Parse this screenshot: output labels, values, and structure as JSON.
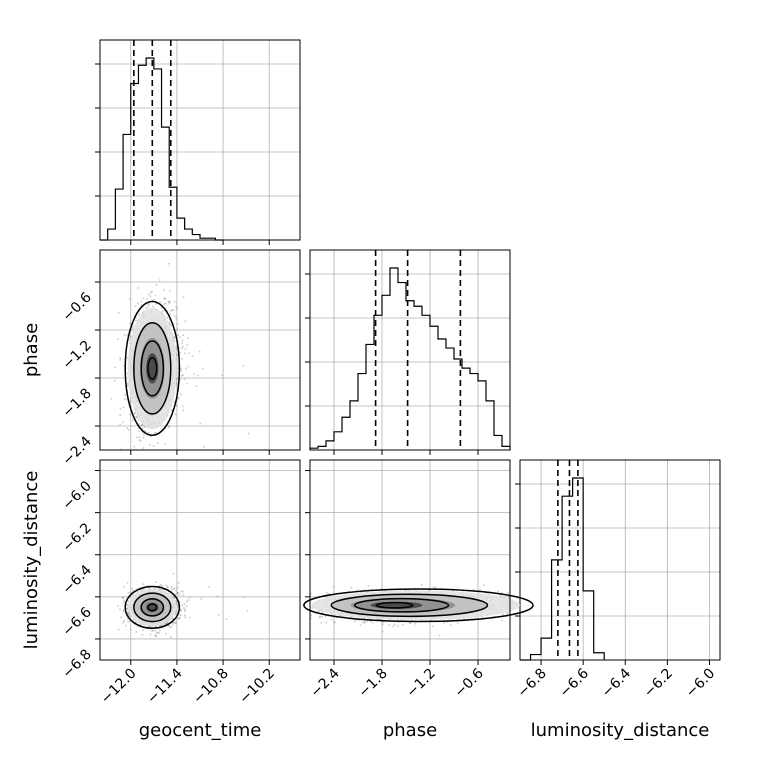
{
  "chart_data": {
    "type": "corner",
    "parameters": [
      "geocent_time",
      "phase",
      "luminosity_distance"
    ],
    "axis_labels": {
      "geocent_time": "geocent_time",
      "phase": "phase",
      "luminosity_distance": "luminosity_distance"
    },
    "ranges": {
      "geocent_time": [
        -12.4,
        -9.8
      ],
      "phase": [
        -2.7,
        -0.2
      ],
      "luminosity_distance": [
        -6.9,
        -5.95
      ]
    },
    "ticks": {
      "geocent_time": [
        -12.0,
        -11.4,
        -10.8,
        -10.2
      ],
      "phase": [
        -2.4,
        -1.8,
        -1.2,
        -0.6
      ],
      "luminosity_distance": [
        -6.8,
        -6.6,
        -6.4,
        -6.2,
        -6.0
      ]
    },
    "tick_labels": {
      "geocent_time": [
        "−12.0",
        "−11.4",
        "−10.8",
        "−10.2"
      ],
      "phase": [
        "−2.4",
        "−1.8",
        "−1.2",
        "−0.6"
      ],
      "luminosity_distance": [
        "−6.8",
        "−6.6",
        "−6.4",
        "−6.2",
        "−6.0"
      ]
    },
    "quantiles": {
      "geocent_time": [
        -11.96,
        -11.72,
        -11.48
      ],
      "phase": [
        -1.88,
        -1.48,
        -0.82
      ],
      "luminosity_distance": [
        -6.72,
        -6.665,
        -6.625
      ]
    },
    "histograms": {
      "geocent_time": {
        "bin_edges": [
          -12.4,
          -12.3,
          -12.2,
          -12.1,
          -12.0,
          -11.9,
          -11.8,
          -11.7,
          -11.6,
          -11.5,
          -11.4,
          -11.3,
          -11.2,
          -11.1,
          -11.0,
          -10.9,
          -10.8
        ],
        "counts": [
          0.0,
          0.06,
          0.28,
          0.58,
          0.86,
          0.96,
          1.0,
          0.94,
          0.62,
          0.29,
          0.12,
          0.06,
          0.03,
          0.01,
          0.01,
          0.0
        ]
      },
      "phase": {
        "bin_edges": [
          -2.7,
          -2.6,
          -2.5,
          -2.4,
          -2.3,
          -2.2,
          -2.1,
          -2.0,
          -1.9,
          -1.8,
          -1.7,
          -1.6,
          -1.5,
          -1.4,
          -1.3,
          -1.2,
          -1.1,
          -1.0,
          -0.9,
          -0.8,
          -0.7,
          -0.6,
          -0.5,
          -0.4,
          -0.3,
          -0.2
        ],
        "counts": [
          0.01,
          0.02,
          0.05,
          0.1,
          0.18,
          0.27,
          0.42,
          0.58,
          0.74,
          0.85,
          1.0,
          0.92,
          0.82,
          0.79,
          0.74,
          0.68,
          0.61,
          0.56,
          0.5,
          0.45,
          0.42,
          0.38,
          0.27,
          0.08,
          0.02
        ]
      },
      "luminosity_distance": {
        "bin_edges": [
          -6.9,
          -6.85,
          -6.8,
          -6.75,
          -6.7,
          -6.65,
          -6.6,
          -6.55,
          -6.5
        ],
        "counts": [
          0.0,
          0.03,
          0.12,
          0.55,
          0.9,
          1.0,
          0.38,
          0.04
        ]
      }
    },
    "joint_modes": {
      "phase_vs_geocent_time": [
        -11.72,
        -1.68
      ],
      "luminosity_distance_vs_geocent_time": [
        -11.72,
        -6.65
      ],
      "luminosity_distance_vs_phase": [
        -1.7,
        -6.64
      ]
    },
    "grid": true,
    "colors": {
      "samples": "#8c8c8c",
      "contour": "#000000",
      "grid": "#b0b0b0"
    }
  }
}
